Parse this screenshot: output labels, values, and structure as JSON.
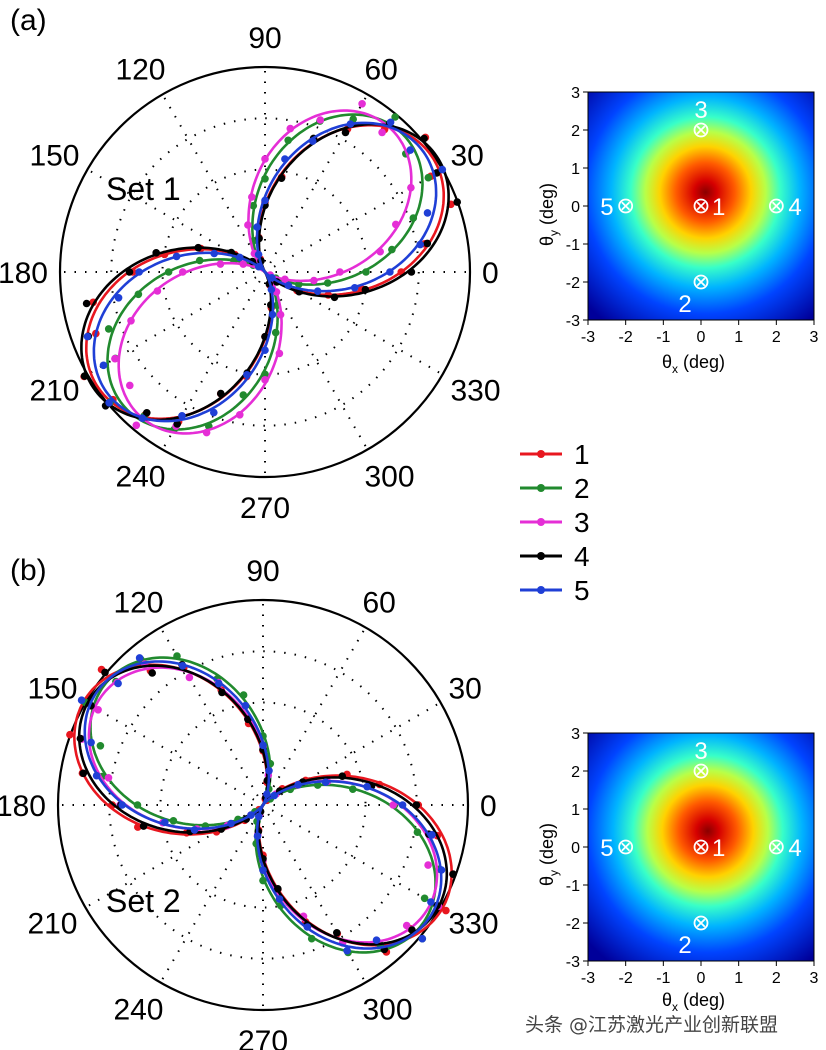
{
  "watermark": "头条 @江苏激光产业创新联盟",
  "chart_data": [
    {
      "type": "polar-line",
      "panel_label": "(a)",
      "set_label": "Set 1",
      "angle_ticks": [
        "0",
        "30",
        "60",
        "90",
        "120",
        "150",
        "180",
        "210",
        "240",
        "270",
        "300",
        "330"
      ],
      "lobe_axis_deg": 35,
      "series": [
        {
          "name": "1",
          "color": "#e8171f",
          "rotation_deg": 35,
          "amplitude": 1.0,
          "phase_offset": 0.0
        },
        {
          "name": "2",
          "color": "#218a2e",
          "rotation_deg": 45,
          "amplitude": 0.96,
          "phase_offset": 0.03
        },
        {
          "name": "3",
          "color": "#e52ed6",
          "rotation_deg": 50,
          "amplitude": 0.94,
          "phase_offset": 0.06
        },
        {
          "name": "4",
          "color": "#000000",
          "rotation_deg": 34,
          "amplitude": 1.02,
          "phase_offset": 0.09
        },
        {
          "name": "5",
          "color": "#1f3fd6",
          "rotation_deg": 38,
          "amplitude": 0.98,
          "phase_offset": 0.12
        }
      ]
    },
    {
      "type": "polar-line",
      "panel_label": "(b)",
      "set_label": "Set 2",
      "angle_ticks": [
        "0",
        "30",
        "60",
        "90",
        "120",
        "150",
        "180",
        "210",
        "240",
        "270",
        "300",
        "330"
      ],
      "lobe_axis_deg": 148,
      "series": [
        {
          "name": "1",
          "color": "#e8171f",
          "rotation_deg": 150,
          "amplitude": 1.02,
          "phase_offset": 0.0
        },
        {
          "name": "2",
          "color": "#218a2e",
          "rotation_deg": 143,
          "amplitude": 0.98,
          "phase_offset": 0.03
        },
        {
          "name": "3",
          "color": "#e52ed6",
          "rotation_deg": 147,
          "amplitude": 0.96,
          "phase_offset": 0.06
        },
        {
          "name": "4",
          "color": "#000000",
          "rotation_deg": 149,
          "amplitude": 1.0,
          "phase_offset": 0.09
        },
        {
          "name": "5",
          "color": "#1f3fd6",
          "rotation_deg": 146,
          "amplitude": 0.99,
          "phase_offset": 0.12
        }
      ]
    },
    {
      "type": "heatmap",
      "xlabel": "θx (deg)",
      "ylabel": "θy (deg)",
      "xlim": [
        -3,
        3
      ],
      "ylim": [
        -3,
        3
      ],
      "ticks": [
        -3,
        -2,
        -1,
        0,
        1,
        2,
        3
      ],
      "peak": [
        0.2,
        0.1
      ],
      "points": [
        {
          "label": "1",
          "x": 0,
          "y": 0
        },
        {
          "label": "2",
          "x": 0,
          "y": -2
        },
        {
          "label": "3",
          "x": 0,
          "y": 2
        },
        {
          "label": "4",
          "x": 2,
          "y": 0
        },
        {
          "label": "5",
          "x": -2,
          "y": 0
        }
      ]
    },
    {
      "type": "heatmap",
      "xlabel": "θx (deg)",
      "ylabel": "θy (deg)",
      "xlim": [
        -3,
        3
      ],
      "ylim": [
        -3,
        3
      ],
      "ticks": [
        -3,
        -2,
        -1,
        0,
        1,
        2,
        3
      ],
      "peak": [
        0.3,
        0.1
      ],
      "points": [
        {
          "label": "1",
          "x": 0,
          "y": 0
        },
        {
          "label": "2",
          "x": 0,
          "y": -2
        },
        {
          "label": "3",
          "x": 0,
          "y": 2
        },
        {
          "label": "4",
          "x": 2,
          "y": 0
        },
        {
          "label": "5",
          "x": -2,
          "y": 0
        }
      ]
    }
  ]
}
